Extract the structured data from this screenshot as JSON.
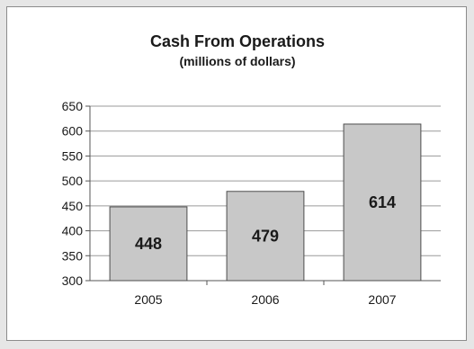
{
  "chart_data": {
    "type": "bar",
    "title": "Cash From Operations",
    "subtitle": "(millions of dollars)",
    "categories": [
      "2005",
      "2006",
      "2007"
    ],
    "values": [
      448,
      479,
      614
    ],
    "data_labels": [
      "448",
      "479",
      "614"
    ],
    "ylim": [
      300,
      650
    ],
    "yticks": [
      300,
      350,
      400,
      450,
      500,
      550,
      600,
      650
    ],
    "grid": true,
    "bar_color": "#c8c8c8",
    "bar_edge_color": "#4d4d4d",
    "grid_color": "#9a9a9a"
  }
}
